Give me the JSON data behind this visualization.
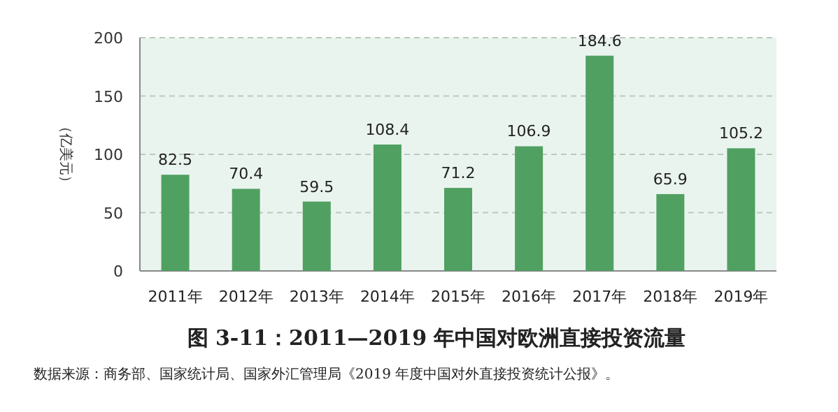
{
  "chart_data": {
    "type": "bar",
    "title": "图 3-11：2011—2019 年中国对欧洲直接投资流量",
    "ylabel": "（亿美元）",
    "categories": [
      "2011年",
      "2012年",
      "2013年",
      "2014年",
      "2015年",
      "2016年",
      "2017年",
      "2018年",
      "2019年"
    ],
    "values": [
      82.5,
      70.4,
      59.5,
      108.4,
      71.2,
      106.9,
      184.6,
      65.9,
      105.2
    ],
    "color": "#50a062",
    "ylim": [
      0,
      200
    ],
    "yticks": [
      0,
      50,
      100,
      150,
      200
    ],
    "grid": "y",
    "data_labels": true,
    "annotations": [
      "数据来源：商务部、国家统计局、国家外汇管理局《2019 年度中国对外直接投资统计公报》。"
    ]
  }
}
